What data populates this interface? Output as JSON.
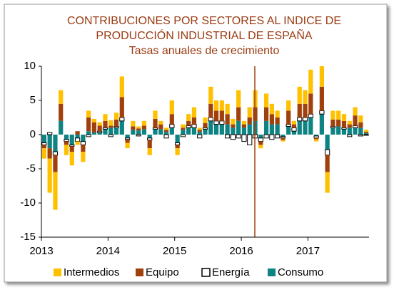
{
  "chart_data": {
    "type": "stacked_bar",
    "title": [
      "CONTRIBUCIONES POR SECTORES AL INDICE DE",
      "PRODUCCIÓN INDUSTRIAL DE ESPAÑA"
    ],
    "subtitle": "Tasas anuales de crecimiento",
    "categories": [
      "2013",
      null,
      null,
      null,
      null,
      null,
      null,
      null,
      null,
      null,
      null,
      null,
      "2014",
      null,
      null,
      null,
      null,
      null,
      null,
      null,
      null,
      null,
      null,
      null,
      "2015",
      null,
      null,
      null,
      null,
      null,
      null,
      null,
      null,
      null,
      null,
      null,
      "2016",
      null,
      null,
      null,
      null,
      null,
      null,
      null,
      null,
      null,
      null,
      null,
      "2017",
      null,
      null,
      null,
      null,
      null,
      null,
      null,
      null,
      null,
      null
    ],
    "series": [
      {
        "name": "Intermedios",
        "color": "#ffc000",
        "values": [
          -1.5,
          -5,
          -5.5,
          2,
          -1.5,
          -2,
          -0.5,
          -1.5,
          1,
          0.5,
          0.5,
          1,
          0.8,
          1,
          3,
          -0.8,
          0.8,
          0.3,
          0.7,
          -1,
          1.2,
          0.5,
          0.3,
          2,
          -1,
          0.5,
          1,
          1.5,
          0.3,
          0.8,
          2.5,
          1.5,
          1.5,
          1.5,
          0.8,
          2.5,
          0.5,
          1.5,
          2.5,
          -0.5,
          2,
          1.5,
          1,
          -0.2,
          1.5,
          0.5,
          2.5,
          2,
          3.5,
          -0.3,
          3,
          -3,
          1.3,
          1.3,
          1,
          0.5,
          1.2,
          1,
          0.3
        ]
      },
      {
        "name": "Equipo",
        "color": "#a0410d",
        "values": [
          -0.5,
          -1.5,
          -2.5,
          2.5,
          -0.5,
          -0.8,
          0.5,
          -1,
          2,
          1.5,
          0.8,
          1,
          0.3,
          1,
          3,
          -0.5,
          0.5,
          0.3,
          0.5,
          -1.2,
          1.3,
          0.7,
          0.3,
          1.5,
          -0.5,
          0.3,
          0.7,
          1,
          0.3,
          0.7,
          2,
          1.5,
          1.5,
          1.5,
          0.5,
          2,
          0.5,
          1,
          2,
          -0.5,
          2,
          1.5,
          1,
          -0.3,
          2,
          0.5,
          2,
          2,
          3,
          -0.2,
          3.5,
          -2.5,
          1,
          1,
          1,
          0.5,
          1.5,
          0.8,
          0.2
        ]
      },
      {
        "name": "Energía",
        "color": "#ffffff",
        "values": [
          -0.3,
          0.3,
          -0.5,
          0,
          -0.3,
          -0.2,
          -0.5,
          -0.5,
          -0.3,
          0,
          0.2,
          0.2,
          -0.3,
          0.2,
          0.5,
          -0.2,
          0,
          -0.2,
          0,
          -0.3,
          0.2,
          0,
          -0.5,
          0.5,
          -0.3,
          -0.3,
          0.3,
          0.5,
          -0.5,
          0.2,
          0.5,
          0.5,
          0.5,
          -0.5,
          -0.7,
          -0.5,
          -1,
          -1.5,
          -0.5,
          -0.5,
          -0.5,
          -0.7,
          -0.5,
          -0.2,
          0.3,
          0.5,
          0.5,
          0.5,
          0.5,
          -0.3,
          0.5,
          -0.8,
          0.2,
          0,
          0.2,
          -0.3,
          0.3,
          -0.2,
          -0.1
        ]
      },
      {
        "name": "Consumo",
        "color": "#0e8383",
        "values": [
          -1.2,
          -2,
          -2.5,
          2,
          -0.7,
          -1.5,
          -0.5,
          -1,
          0.5,
          0.3,
          0.3,
          0.8,
          1,
          1,
          2,
          -0.5,
          0.7,
          0.6,
          0.8,
          -0.5,
          0.8,
          0.8,
          0.4,
          1,
          -1.2,
          0.7,
          1,
          1,
          0.4,
          0.8,
          2,
          1.5,
          1.5,
          1.5,
          1,
          2,
          1,
          1.5,
          2,
          -0.5,
          2,
          1.5,
          1.5,
          -0.3,
          1.2,
          0.5,
          2,
          2,
          2.5,
          -0.2,
          3,
          -2.2,
          1,
          1.2,
          0.8,
          1,
          1,
          1,
          0.2
        ]
      }
    ],
    "ylim": [
      -15,
      10
    ],
    "yticks": [
      -15,
      -10,
      -5,
      0,
      5,
      10
    ]
  }
}
